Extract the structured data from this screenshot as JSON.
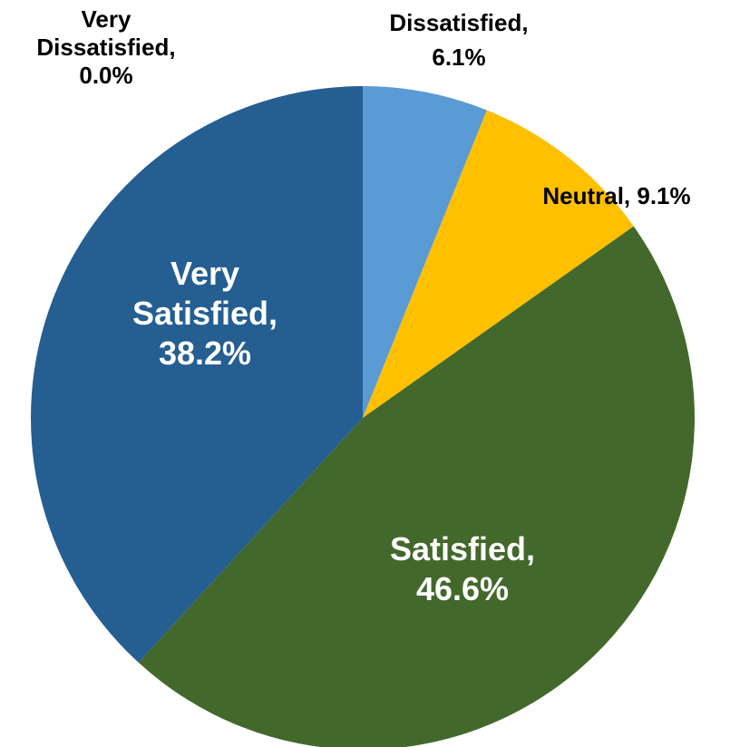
{
  "chart_data": {
    "type": "pie",
    "slices": [
      {
        "category": "Very Dissatisfied",
        "value": 0.0,
        "label": [
          "Very",
          "Dissatisfied,",
          "0.0%"
        ],
        "color": "#4472C4",
        "label_style": "outside"
      },
      {
        "category": "Dissatisfied",
        "value": 6.1,
        "label": [
          "Dissatisfied,",
          "6.1%"
        ],
        "color": "#5B9BD5",
        "label_style": "outside"
      },
      {
        "category": "Neutral",
        "value": 9.1,
        "label": [
          "Neutral, 9.1%"
        ],
        "color": "#FFC000",
        "label_style": "outside"
      },
      {
        "category": "Satisfied",
        "value": 46.6,
        "label": [
          "Satisfied,",
          "46.6%"
        ],
        "color": "#43682B",
        "label_style": "inside"
      },
      {
        "category": "Very Satisfied",
        "value": 38.2,
        "label": [
          "Very",
          "Satisfied,",
          "38.2%"
        ],
        "color": "#255E91",
        "label_style": "inside"
      }
    ],
    "start_angle_deg": 0,
    "direction": "clockwise",
    "title": "",
    "legend": "none"
  }
}
